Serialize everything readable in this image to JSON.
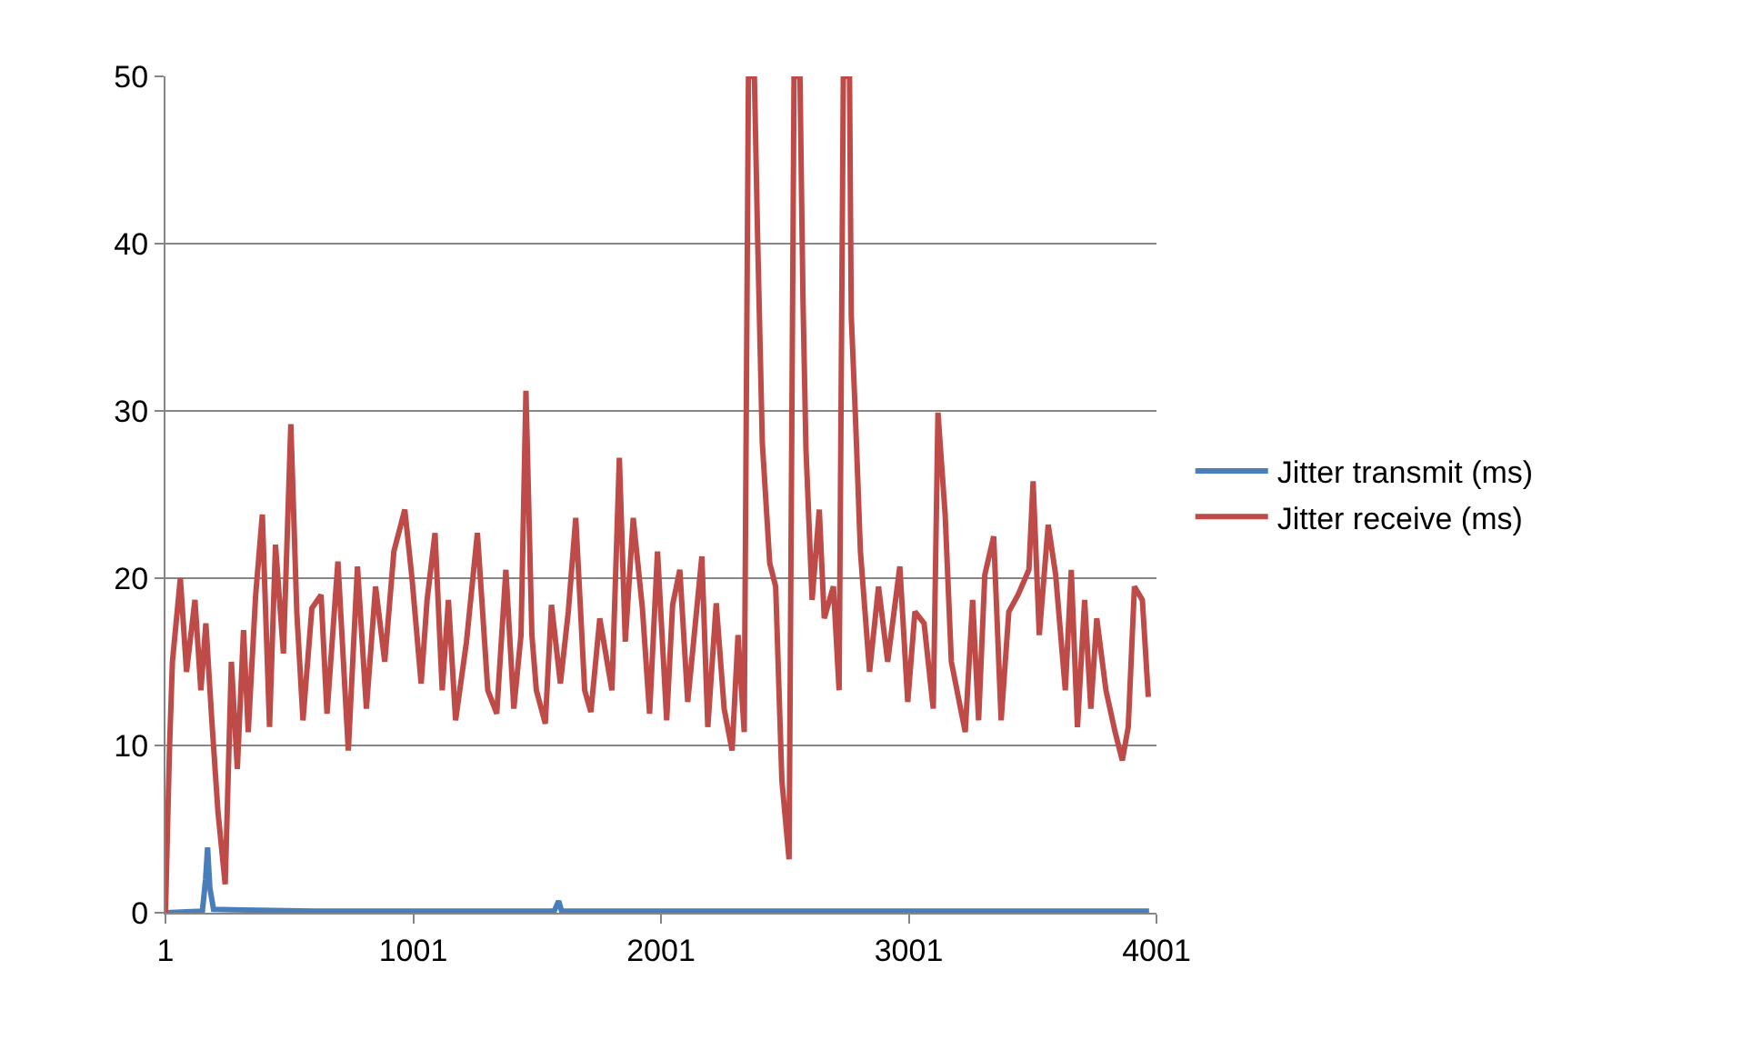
{
  "chart_data": {
    "type": "line",
    "xlim": [
      1,
      4001
    ],
    "xticks": [
      1,
      1001,
      2001,
      3001,
      4001
    ],
    "ylim": [
      0,
      50
    ],
    "yticks": [
      0,
      10,
      20,
      30,
      40,
      50
    ],
    "grid": "y",
    "legend": "right",
    "marker": "none",
    "line_style": "solid",
    "series": [
      {
        "name": "Jitter transmit (ms)",
        "color": "#4a7ebb",
        "x": [
          1,
          150,
          163,
          171,
          180,
          195,
          600,
          1000,
          1570,
          1588,
          1600,
          2500,
          3000,
          3971
        ],
        "values": [
          0,
          0.1,
          2,
          3.9,
          1.5,
          0.2,
          0.1,
          0.1,
          0.1,
          0.7,
          0.1,
          0.1,
          0.1,
          0.1
        ]
      },
      {
        "name": "Jitter receive (ms)",
        "color": "#be4b48",
        "x": [
          1,
          17,
          29,
          61,
          86,
          120,
          144,
          164,
          188,
          213,
          242,
          267,
          291,
          316,
          335,
          365,
          392,
          421,
          445,
          477,
          507,
          531,
          556,
          592,
          629,
          653,
          697,
          739,
          776,
          812,
          849,
          886,
          923,
          967,
          996,
          1033,
          1057,
          1089,
          1118,
          1143,
          1172,
          1216,
          1260,
          1302,
          1338,
          1375,
          1407,
          1436,
          1456,
          1480,
          1498,
          1534,
          1559,
          1595,
          1627,
          1657,
          1693,
          1718,
          1754,
          1803,
          1833,
          1857,
          1889,
          1926,
          1955,
          1987,
          2024,
          2048,
          2077,
          2109,
          2166,
          2190,
          2224,
          2256,
          2288,
          2312,
          2337,
          2354,
          2378,
          2391,
          2410,
          2440,
          2464,
          2489,
          2518,
          2538,
          2562,
          2574,
          2586,
          2611,
          2640,
          2660,
          2697,
          2720,
          2737,
          2762,
          2769,
          2786,
          2806,
          2843,
          2879,
          2916,
          2965,
          2997,
          3026,
          3063,
          3100,
          3119,
          3148,
          3173,
          3229,
          3259,
          3283,
          3308,
          3344,
          3374,
          3405,
          3442,
          3486,
          3503,
          3528,
          3564,
          3594,
          3633,
          3657,
          3682,
          3711,
          3736,
          3760,
          3797,
          3834,
          3863,
          3887,
          3912,
          3944,
          3968
        ],
        "values": [
          0,
          9.7,
          15,
          20,
          14.4,
          18.7,
          13.3,
          17.3,
          11.5,
          6,
          1.7,
          15,
          8.6,
          16.9,
          10.8,
          19,
          23.8,
          11.1,
          22,
          15.5,
          29.2,
          18,
          11.5,
          18.2,
          19,
          11.9,
          21,
          9.7,
          20.7,
          12.2,
          19.5,
          15,
          21.6,
          24.1,
          20,
          13.7,
          18.7,
          22.7,
          13.3,
          18.7,
          11.5,
          16.2,
          22.7,
          13.3,
          11.9,
          20.5,
          12.2,
          16.6,
          31.2,
          16.6,
          13.3,
          11.3,
          18.4,
          13.7,
          18,
          23.6,
          13.3,
          12,
          17.6,
          13.3,
          27.2,
          16.2,
          23.6,
          18.2,
          11.9,
          21.6,
          11.5,
          18.4,
          20.5,
          12.6,
          21.3,
          11.1,
          18.5,
          12.2,
          9.7,
          16.6,
          10.8,
          50,
          50,
          40.4,
          28.1,
          20.9,
          19.5,
          7.9,
          3.2,
          50,
          50,
          36.8,
          27.8,
          18.7,
          24.1,
          17.6,
          19.5,
          13.3,
          50,
          50,
          35.7,
          29.6,
          21.6,
          14.4,
          19.5,
          15,
          20.7,
          12.6,
          18,
          17.3,
          12.2,
          29.9,
          23.8,
          15,
          10.8,
          18.7,
          11.5,
          20.2,
          22.5,
          11.5,
          18,
          19,
          20.5,
          25.8,
          16.6,
          23.2,
          20.2,
          13.3,
          20.5,
          11.1,
          18.7,
          12.2,
          17.6,
          13.3,
          10.8,
          9.1,
          11.1,
          19.5,
          18.7,
          12.9
        ]
      }
    ]
  }
}
